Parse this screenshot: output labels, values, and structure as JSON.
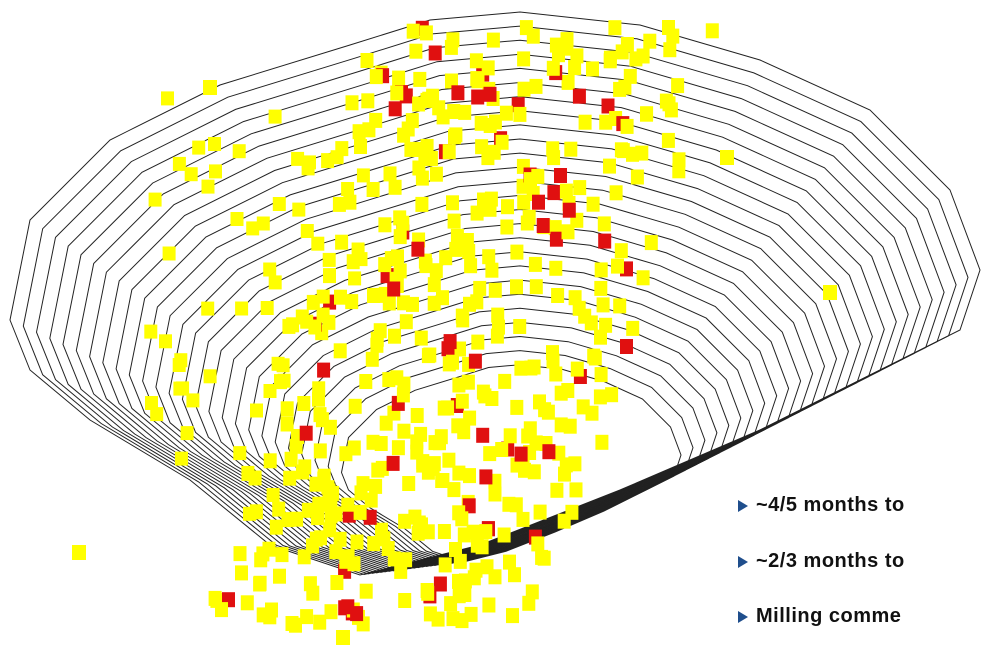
{
  "bullets": [
    "~4/5 months to",
    "~2/3 months to",
    "Milling comme"
  ]
}
